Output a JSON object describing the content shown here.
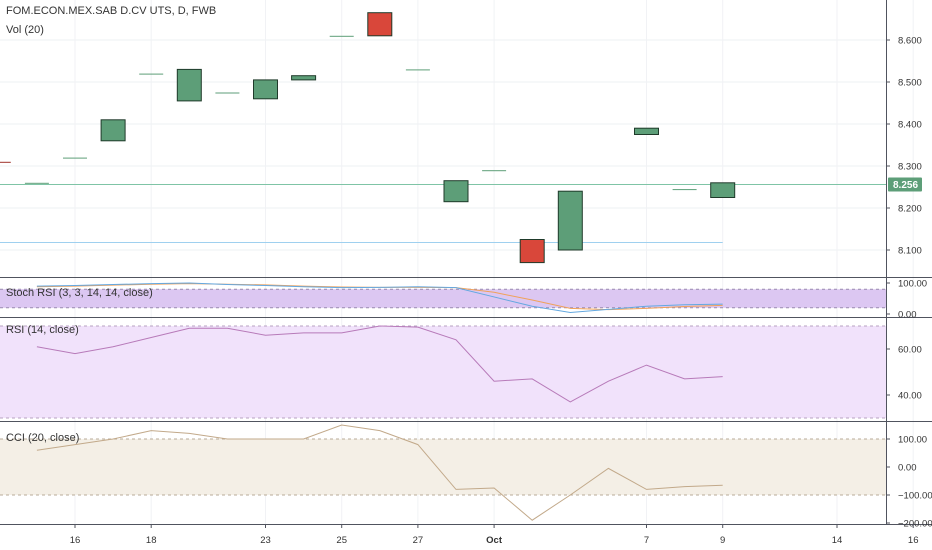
{
  "header": {
    "symbol_line": "FOM.ECON.MEX.SAB D.CV UTS, D, FWB",
    "volume_label": "Vol (20)"
  },
  "panels": {
    "stoch_label": "Stoch RSI (3, 3, 14, 14, close)",
    "rsi_label": "RSI (14, close)",
    "cci_label": "CCI (20, close)"
  },
  "colors": {
    "up": "#5d9e78",
    "down": "#d9473a",
    "price_line": "#7fc4a6",
    "stoch_k": "#64a8e0",
    "stoch_d": "#f0a25a",
    "rsi_line": "#b77ab9",
    "cci_line": "#c2a98a",
    "stoch_fill": "#dcc7f2",
    "rsi_fill": "#f1e2fb",
    "cci_fill": "#f4efe6"
  },
  "chart_data": {
    "type": "candlestick",
    "dates": [
      "2019-09-13",
      "2019-09-16",
      "2019-09-17",
      "2019-09-18",
      "2019-09-19",
      "2019-09-20",
      "2019-09-23",
      "2019-09-24",
      "2019-09-25",
      "2019-09-26",
      "2019-09-27",
      "2019-09-30",
      "2019-10-01",
      "2019-10-02",
      "2019-10-03",
      "2019-10-04",
      "2019-10-07",
      "2019-10-08",
      "2019-10-09"
    ],
    "x_ticks": [
      {
        "label": "16",
        "date": "2019-09-16"
      },
      {
        "label": "18",
        "date": "2019-09-18"
      },
      {
        "label": "23",
        "date": "2019-09-23"
      },
      {
        "label": "25",
        "date": "2019-09-25"
      },
      {
        "label": "27",
        "date": "2019-09-27"
      },
      {
        "label": "Oct",
        "date": "2019-10-01"
      },
      {
        "label": "7",
        "date": "2019-10-07"
      },
      {
        "label": "9",
        "date": "2019-10-09"
      },
      {
        "label": "14",
        "date": "2019-10-14"
      },
      {
        "label": "16",
        "date": "2019-10-16"
      }
    ],
    "price": {
      "y_ticks": [
        8.6,
        8.5,
        8.4,
        8.3,
        8.2,
        8.1
      ],
      "y_tick_labels": [
        "8.600",
        "8.500",
        "8.400",
        "8.300",
        "8.200",
        "8.100"
      ],
      "last_price": 8.256,
      "last_price_label": "8.256",
      "reference_level": 8.118,
      "candles": [
        {
          "date": "2019-09-12",
          "open": 8.31,
          "close": 8.31
        },
        {
          "date": "2019-09-13",
          "open": 8.26,
          "close": 8.26
        },
        {
          "date": "2019-09-16",
          "open": 8.32,
          "close": 8.32
        },
        {
          "date": "2019-09-17",
          "open": 8.36,
          "close": 8.41
        },
        {
          "date": "2019-09-18",
          "open": 8.52,
          "close": 8.52
        },
        {
          "date": "2019-09-19",
          "open": 8.455,
          "close": 8.53
        },
        {
          "date": "2019-09-20",
          "open": 8.475,
          "close": 8.475
        },
        {
          "date": "2019-09-23",
          "open": 8.46,
          "close": 8.505
        },
        {
          "date": "2019-09-24",
          "open": 8.505,
          "close": 8.515
        },
        {
          "date": "2019-09-25",
          "open": 8.61,
          "close": 8.61
        },
        {
          "date": "2019-09-26",
          "open": 8.665,
          "close": 8.61
        },
        {
          "date": "2019-09-27",
          "open": 8.53,
          "close": 8.53
        },
        {
          "date": "2019-09-30",
          "open": 8.215,
          "close": 8.265
        },
        {
          "date": "2019-10-01",
          "open": 8.29,
          "close": 8.29
        },
        {
          "date": "2019-10-02",
          "open": 8.125,
          "close": 8.07
        },
        {
          "date": "2019-10-03",
          "open": 8.1,
          "close": 8.24
        },
        {
          "date": "2019-10-07",
          "open": 8.375,
          "close": 8.39
        },
        {
          "date": "2019-10-08",
          "open": 8.245,
          "close": 8.245
        },
        {
          "date": "2019-10-09",
          "open": 8.225,
          "close": 8.26
        }
      ]
    },
    "stoch_rsi": {
      "y_ticks": [
        100,
        0
      ],
      "y_tick_labels": [
        "100.00",
        "0.00"
      ],
      "upper_band": 80,
      "lower_band": 20,
      "k": [
        90,
        92,
        95,
        98,
        100,
        95,
        92,
        88,
        85,
        86,
        88,
        85,
        55,
        25,
        5,
        15,
        25,
        30,
        32
      ],
      "d": [
        88,
        90,
        93,
        96,
        98,
        96,
        94,
        90,
        87,
        86,
        86,
        85,
        70,
        45,
        18,
        14,
        18,
        24,
        28
      ]
    },
    "rsi": {
      "y_ticks": [
        60,
        40
      ],
      "y_tick_labels": [
        "60.00",
        "40.00"
      ],
      "upper_band": 70,
      "lower_band": 30,
      "values": [
        61,
        58,
        61,
        65,
        69,
        69,
        66,
        67,
        67,
        70,
        69.5,
        64,
        46,
        47,
        37,
        46,
        53,
        47,
        48
      ]
    },
    "cci": {
      "y_ticks": [
        100,
        0,
        -100,
        -200
      ],
      "y_tick_labels": [
        "100.00",
        "0.00",
        "−100.00",
        "−200.00"
      ],
      "upper_band": 100,
      "lower_band": -100,
      "values": [
        60,
        80,
        100,
        130,
        120,
        100,
        100,
        100,
        150,
        130,
        80,
        -80,
        -75,
        -190,
        -100,
        -5,
        -80,
        -70,
        -65
      ]
    }
  }
}
